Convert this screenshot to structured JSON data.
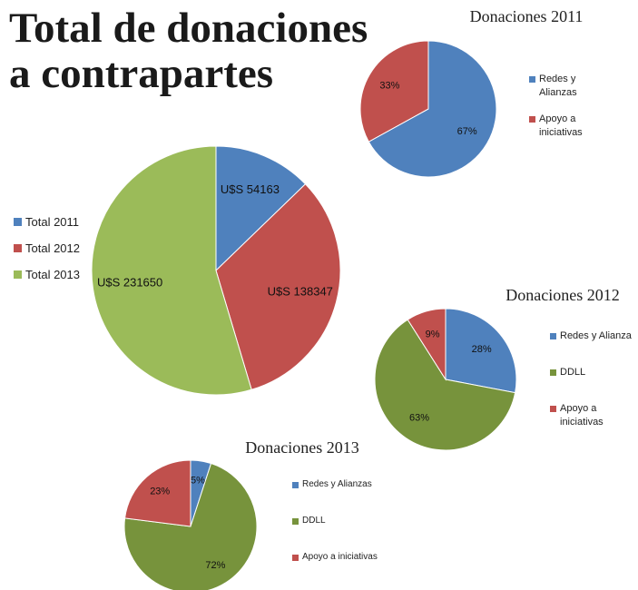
{
  "title": "Total de donaciones a contrapartes",
  "chart_data": [
    {
      "type": "pie",
      "categories": [
        "Total 2011",
        "Total 2012",
        "Total 2013"
      ],
      "values": [
        54163,
        138347,
        231650
      ],
      "value_labels": [
        "U$S 54163",
        "U$S 138347",
        "U$S 231650"
      ],
      "colors": [
        "#4f81bd",
        "#c0504d",
        "#9bbb59"
      ]
    },
    {
      "type": "pie",
      "title": "Donaciones 2011",
      "categories": [
        "Redes y Alianzas",
        "Apoyo a iniciativas"
      ],
      "values": [
        67,
        33
      ],
      "value_labels": [
        "67%",
        "33%"
      ],
      "colors": [
        "#4f81bd",
        "#c0504d"
      ]
    },
    {
      "type": "pie",
      "title": "Donaciones 2012",
      "categories": [
        "Redes y Alianza",
        "DDLL",
        "Apoyo a iniciativas"
      ],
      "values": [
        28,
        63,
        9
      ],
      "value_labels": [
        "28%",
        "63%",
        "9%"
      ],
      "colors": [
        "#4f81bd",
        "#77933c",
        "#c0504d"
      ]
    },
    {
      "type": "pie",
      "title": "Donaciones 2013",
      "categories": [
        "Redes y Alianzas",
        "DDLL",
        "Apoyo a iniciativas"
      ],
      "values": [
        5,
        72,
        23
      ],
      "value_labels": [
        "5%",
        "72%",
        "23%"
      ],
      "colors": [
        "#4f81bd",
        "#77933c",
        "#c0504d"
      ]
    }
  ]
}
